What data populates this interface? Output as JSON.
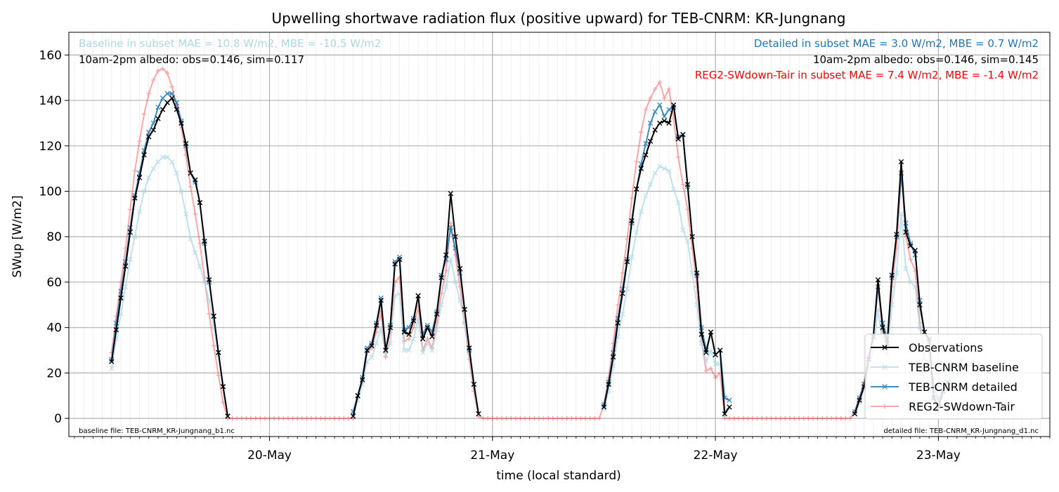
{
  "chart_data": {
    "type": "line",
    "title": "Upwelling shortwave radiation flux (positive upward) for TEB-CNRM: KR-Jungnang",
    "xlabel": "time (local standard)",
    "ylabel": "SWup [W/m2]",
    "ylim": [
      -8,
      170
    ],
    "xlim_days": [
      -0.9,
      3.5
    ],
    "x_major_ticks": [
      {
        "day": 0,
        "label": "20-May"
      },
      {
        "day": 1,
        "label": "21-May"
      },
      {
        "day": 2,
        "label": "22-May"
      },
      {
        "day": 3,
        "label": "23-May"
      }
    ],
    "y_ticks": [
      0,
      20,
      40,
      60,
      80,
      100,
      120,
      140,
      160
    ],
    "grid": true,
    "legend_position": "lower-right",
    "annotations": {
      "baseline_stats": "Baseline in subset MAE = 10.8 W/m2, MBE = -10.5 W/m2",
      "baseline_albedo": "10am-2pm albedo: obs=0.146, sim=0.117",
      "detailed_stats": "Detailed in subset MAE = 3.0 W/m2, MBE = 0.7 W/m2",
      "detailed_albedo": "10am-2pm albedo: obs=0.146, sim=0.145",
      "reg2_stats": "REG2-SWdown-Tair in subset MAE = 7.4 W/m2, MBE = -1.4 W/m2",
      "baseline_file": "baseline file: TEB-CNRM_KR-Jungnang_b1.nc",
      "detailed_file": "detailed file: TEB-CNRM_KR-Jungnang_d1.nc"
    },
    "colors": {
      "obs": "#000000",
      "baseline": "#add8e6",
      "detailed": "#1f77b4",
      "reg2": "#ff0000",
      "baseline_text": "#add8e6",
      "detailed_text": "#1f77b4",
      "reg2_text": "#ff0000"
    },
    "series": [
      {
        "name": "Observations",
        "key": "obs",
        "x_start_day": -0.7083,
        "step_days": 0.020833,
        "values": [
          25,
          39,
          53,
          67,
          82,
          97,
          106,
          116,
          124,
          127,
          132,
          136,
          139,
          141,
          136,
          130,
          121,
          108,
          105,
          95,
          78,
          61,
          45,
          29,
          14,
          1,
          null,
          null,
          null,
          null,
          null,
          null,
          null,
          null,
          null,
          null,
          null,
          null,
          null,
          null,
          null,
          null,
          null,
          null,
          null,
          null,
          null,
          null,
          null,
          null,
          null,
          null,
          1,
          10,
          17,
          30,
          32,
          41,
          52,
          30,
          40,
          68,
          70,
          38,
          37,
          43,
          54,
          35,
          40,
          36,
          46,
          62,
          72,
          99,
          80,
          66,
          48,
          31,
          15,
          2,
          null,
          null,
          null,
          null,
          null,
          null,
          null,
          null,
          null,
          null,
          null,
          null,
          null,
          null,
          null,
          null,
          null,
          null,
          null,
          null,
          null,
          null,
          null,
          null,
          null,
          null,
          5,
          15,
          27,
          42,
          55,
          69,
          87,
          101,
          110,
          116,
          122,
          127,
          130,
          131,
          130,
          138,
          123,
          125,
          103,
          80,
          64,
          37,
          29,
          38,
          28,
          30,
          2,
          5,
          null,
          null,
          null,
          null,
          null,
          null,
          null,
          null,
          null,
          null,
          null,
          null,
          null,
          null,
          null,
          null,
          null,
          null,
          null,
          null,
          null,
          null,
          null,
          null,
          null,
          null,
          2,
          8,
          14,
          26,
          36,
          61,
          40,
          33,
          63,
          81,
          113,
          82,
          76,
          74,
          50,
          38,
          35,
          9,
          5,
          12,
          16
        ]
      },
      {
        "name": "TEB-CNRM baseline",
        "key": "baseline",
        "x_start_day": -0.7083,
        "step_days": 0.020833,
        "values": [
          22,
          35,
          46,
          58,
          70,
          80,
          91,
          100,
          106,
          110,
          113,
          115,
          115,
          113,
          108,
          100,
          90,
          79,
          73,
          67,
          60,
          52,
          40,
          28,
          14,
          1,
          null,
          null,
          null,
          null,
          null,
          null,
          null,
          null,
          null,
          null,
          null,
          null,
          null,
          null,
          null,
          null,
          null,
          null,
          null,
          null,
          null,
          null,
          null,
          null,
          null,
          null,
          2,
          8,
          15,
          25,
          27,
          33,
          40,
          28,
          33,
          54,
          55,
          30,
          30,
          35,
          44,
          29,
          33,
          30,
          39,
          50,
          58,
          70,
          60,
          52,
          42,
          29,
          14,
          2,
          null,
          null,
          null,
          null,
          null,
          null,
          null,
          null,
          null,
          null,
          null,
          null,
          null,
          null,
          null,
          null,
          null,
          null,
          null,
          null,
          null,
          null,
          null,
          null,
          null,
          null,
          4,
          12,
          23,
          36,
          46,
          57,
          71,
          82,
          91,
          98,
          103,
          108,
          111,
          110,
          109,
          101,
          95,
          83,
          78,
          64,
          50,
          33,
          25,
          30,
          24,
          24,
          3,
          5,
          null,
          null,
          null,
          null,
          null,
          null,
          null,
          null,
          null,
          null,
          null,
          null,
          null,
          null,
          null,
          null,
          null,
          null,
          null,
          null,
          null,
          null,
          null,
          null,
          null,
          null,
          2,
          7,
          13,
          22,
          30,
          48,
          33,
          28,
          50,
          64,
          90,
          66,
          60,
          58,
          40,
          31,
          28,
          8,
          5,
          10,
          14,
          18,
          22,
          26
        ]
      },
      {
        "name": "TEB-CNRM detailed",
        "key": "detailed",
        "x_start_day": -0.7083,
        "step_days": 0.020833,
        "values": [
          26,
          42,
          56,
          69,
          84,
          98,
          108,
          118,
          126,
          130,
          137,
          141,
          143,
          143,
          139,
          131,
          120,
          108,
          104,
          95,
          77,
          60,
          45,
          29,
          14,
          1,
          null,
          null,
          null,
          null,
          null,
          null,
          null,
          null,
          null,
          null,
          null,
          null,
          null,
          null,
          null,
          null,
          null,
          null,
          null,
          null,
          null,
          null,
          null,
          null,
          null,
          null,
          3,
          10,
          18,
          31,
          33,
          42,
          53,
          30,
          41,
          69,
          71,
          39,
          40,
          44,
          54,
          37,
          41,
          38,
          47,
          63,
          70,
          84,
          75,
          64,
          48,
          30,
          15,
          2,
          null,
          null,
          null,
          null,
          null,
          null,
          null,
          null,
          null,
          null,
          null,
          null,
          null,
          null,
          null,
          null,
          null,
          null,
          null,
          null,
          null,
          null,
          null,
          null,
          null,
          null,
          6,
          16,
          29,
          44,
          57,
          70,
          86,
          101,
          112,
          121,
          130,
          135,
          138,
          133,
          136,
          137,
          124,
          125,
          102,
          80,
          63,
          40,
          30,
          38,
          28,
          30,
          9,
          8,
          null,
          null,
          null,
          null,
          null,
          null,
          null,
          null,
          null,
          null,
          null,
          null,
          null,
          null,
          null,
          null,
          null,
          null,
          null,
          null,
          null,
          null,
          null,
          null,
          null,
          null,
          3,
          9,
          15,
          27,
          36,
          58,
          42,
          35,
          62,
          80,
          108,
          86,
          77,
          72,
          52,
          38,
          34,
          14,
          8,
          12,
          16
        ]
      },
      {
        "name": "REG2-SWdown-Tair",
        "key": "reg2",
        "x_start_day": -0.7083,
        "step_days": 0.020833,
        "values": [
          29,
          45,
          60,
          75,
          92,
          109,
          122,
          134,
          143,
          149,
          153,
          154,
          152,
          146,
          138,
          128,
          116,
          102,
          90,
          77,
          62,
          46,
          32,
          19,
          7,
          0,
          0,
          0,
          0,
          0,
          0,
          0,
          0,
          0,
          0,
          0,
          0,
          0,
          0,
          0,
          0,
          0,
          0,
          0,
          0,
          0,
          0,
          0,
          0,
          0,
          0,
          0,
          0,
          9,
          17,
          29,
          31,
          38,
          47,
          27,
          38,
          60,
          62,
          34,
          35,
          40,
          49,
          30,
          35,
          31,
          42,
          55,
          65,
          86,
          72,
          58,
          42,
          26,
          12,
          1,
          0,
          0,
          0,
          0,
          0,
          0,
          0,
          0,
          0,
          0,
          0,
          0,
          0,
          0,
          0,
          0,
          0,
          0,
          0,
          0,
          0,
          0,
          0,
          0,
          0,
          0,
          6,
          18,
          33,
          50,
          64,
          79,
          97,
          113,
          126,
          136,
          141,
          145,
          148,
          141,
          145,
          132,
          115,
          103,
          92,
          75,
          58,
          34,
          21,
          22,
          18,
          20,
          0,
          0,
          0,
          0,
          0,
          0,
          0,
          0,
          0,
          0,
          0,
          0,
          0,
          0,
          0,
          0,
          0,
          0,
          0,
          0,
          0,
          0,
          0,
          0,
          0,
          0,
          0,
          0,
          3,
          9,
          16,
          29,
          36,
          58,
          38,
          29,
          58,
          75,
          108,
          80,
          70,
          65,
          42,
          26,
          25,
          10,
          6,
          6,
          5,
          5,
          5,
          3
        ]
      }
    ]
  }
}
